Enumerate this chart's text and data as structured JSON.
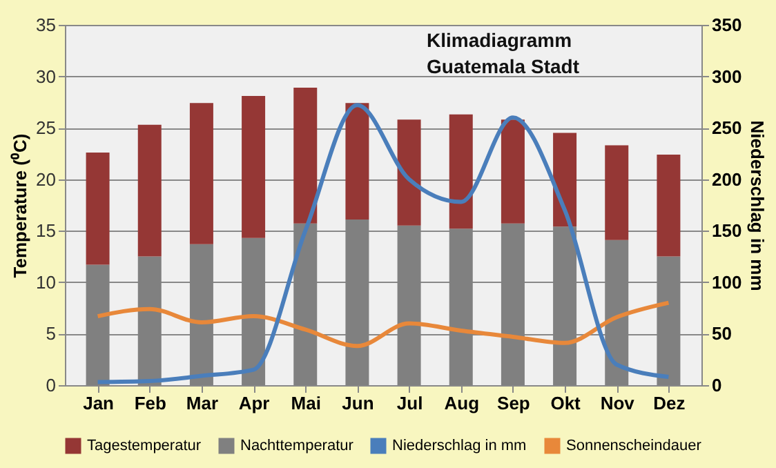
{
  "chart_data": {
    "type": "bar",
    "title": "Klimadiagramm",
    "subtitle": "Guatemala Stadt",
    "ylabel": "Temperature (⁰C)",
    "y2label": "Niederschlag in mm",
    "categories": [
      "Jan",
      "Feb",
      "Mar",
      "Apr",
      "Mai",
      "Jun",
      "Jul",
      "Aug",
      "Sep",
      "Okt",
      "Nov",
      "Dez"
    ],
    "stacked": true,
    "series": [
      {
        "name": "Nachttemperatur",
        "color": "#808080",
        "values": [
          11.7,
          12.5,
          13.7,
          14.3,
          15.7,
          16.1,
          15.5,
          15.2,
          15.7,
          15.4,
          14.1,
          12.5
        ]
      },
      {
        "name": "Tagestemperatur",
        "color": "#953735",
        "values": [
          10.9,
          12.8,
          13.7,
          13.8,
          13.2,
          11.3,
          10.3,
          11.1,
          10.1,
          9.1,
          9.2,
          9.9
        ]
      },
      {
        "name": "Niederschlag in mm",
        "type": "line",
        "axis": "y2",
        "color": "#4a7ebb",
        "values": [
          3,
          4,
          9,
          15,
          150,
          272,
          200,
          178,
          260,
          170,
          20,
          8
        ]
      },
      {
        "name": "Sonnenscheindauer",
        "type": "line",
        "color": "#e8883a",
        "values": [
          6.7,
          7.4,
          6.1,
          6.7,
          5.4,
          3.8,
          6.0,
          5.3,
          4.7,
          4.1,
          6.6,
          8.0
        ]
      }
    ],
    "ylim": [
      0,
      35
    ],
    "yticks": [
      0,
      5,
      10,
      15,
      20,
      25,
      30,
      35
    ],
    "y2lim": [
      0,
      350
    ],
    "y2ticks": [
      0,
      50,
      100,
      150,
      200,
      250,
      300,
      350
    ],
    "grid": "y",
    "legend": "bottom"
  }
}
